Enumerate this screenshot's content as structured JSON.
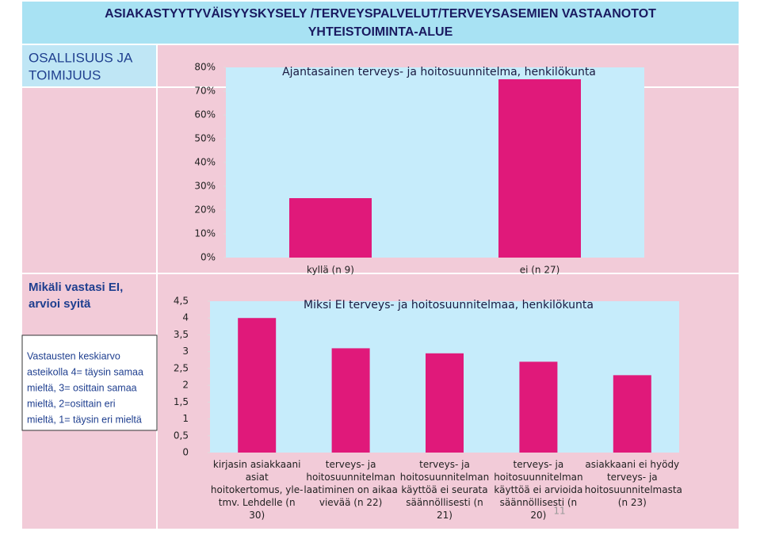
{
  "header": {
    "title": [
      "ASIAKASTYYTYVÄISYYSKYSELY /TERVEYSPALVELUT/TERVEYSASEMIEN VASTAANOTOT",
      "YHTEISTOIMINTA-ALUE"
    ]
  },
  "sidebar": {
    "section": [
      "OSALLISUUS JA",
      "TOIMIJUUS"
    ],
    "question": [
      "Mikäli vastasi EI,",
      "arvioi syitä"
    ],
    "note": [
      "Vastausten keskiarvo",
      "asteikolla 4= täysin samaa",
      "mieltä, 3= osittain samaa",
      "mieltä, 2=osittain eri",
      "mieltä, 1= täysin eri mieltä"
    ]
  },
  "page_number": "11",
  "chart_data": [
    {
      "type": "bar",
      "title": "Ajantasainen terveys- ja hoitosuunnitelma, henkilökunta",
      "categories": [
        "kyllä (n 9)",
        "ei (n 27)"
      ],
      "values": [
        25,
        75
      ],
      "color": "#e0197a",
      "ylim": [
        0,
        80
      ],
      "yticks": [
        {
          "value": 0,
          "label": "0%"
        },
        {
          "value": 10,
          "label": "10%"
        },
        {
          "value": 20,
          "label": "20%"
        },
        {
          "value": 30,
          "label": "30%"
        },
        {
          "value": 40,
          "label": "40%"
        },
        {
          "value": 50,
          "label": "50%"
        },
        {
          "value": 60,
          "label": "60%"
        },
        {
          "value": 70,
          "label": "70%"
        },
        {
          "value": 80,
          "label": "80%"
        }
      ]
    },
    {
      "type": "bar",
      "title": "Miksi EI terveys- ja hoitosuunnitelmaa, henkilökunta",
      "categories": [
        "kirjasin asiakkaani asiat hoitokertomus, yle- tmv. Lehdelle (n 30)",
        "terveys- ja hoitosuunnitelman laatiminen on aikaa vievää (n 22)",
        "terveys- ja hoitosuunnitelman käyttöä ei seurata säännöllisesti (n 21)",
        "terveys- ja hoitosuunnitelman käyttöä ei arvioida säännöllisesti (n 20)",
        "asiakkaani ei hyödy terveys- ja hoitosuunnitelmasta (n 23)"
      ],
      "values": [
        4,
        3.1,
        2.95,
        2.7,
        2.3
      ],
      "color": "#e0197a",
      "ylim": [
        0,
        4.5
      ],
      "yticks": [
        0,
        {
          "value": 0.5,
          "label": "0,5"
        },
        1,
        {
          "value": 1.5,
          "label": "1,5"
        },
        2,
        {
          "value": 2.5,
          "label": "2,5"
        },
        3,
        {
          "value": 3.5,
          "label": "3,5"
        },
        4,
        {
          "value": 4.5,
          "label": "4,5"
        }
      ]
    }
  ]
}
